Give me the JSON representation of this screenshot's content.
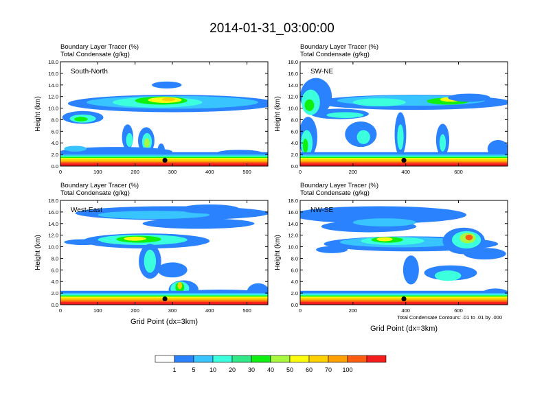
{
  "title": "2014-01-31_03:00:00",
  "panel_subtitle_line1": "Boundary Layer Tracer   (%)",
  "panel_subtitle_line2": "Total Condensate   (g/kg)",
  "x_axis_title": "Grid Point (dx=3km)",
  "y_axis_title": "Height (km)",
  "contour_note": "Total Condensate Contours: .01 to .01 by .000",
  "colorbar": {
    "colors": [
      "#ffffff",
      "#2a82ff",
      "#38c5ff",
      "#3cffdd",
      "#30e888",
      "#10f010",
      "#a8f840",
      "#fcfc10",
      "#ffd000",
      "#ffa000",
      "#ff5e10",
      "#f31d1d"
    ],
    "labels": [
      "1",
      "5",
      "10",
      "20",
      "30",
      "40",
      "50",
      "60",
      "70",
      "100"
    ]
  },
  "chart_data": [
    {
      "type": "heatmap",
      "panel_label": "South-North",
      "xlim": [
        0,
        556
      ],
      "ylim": [
        0,
        18
      ],
      "x_ticks": [
        "0",
        "100",
        "200",
        "300",
        "400",
        "500"
      ],
      "y_ticks": [
        "0.0",
        "2.0",
        "4.0",
        "6.0",
        "8.0",
        "10.0",
        "12.0",
        "14.0",
        "16.0",
        "18.0"
      ],
      "marker": {
        "x": 280,
        "y": 1.0
      }
    },
    {
      "type": "heatmap",
      "panel_label": "SW-NE",
      "xlim": [
        0,
        786
      ],
      "ylim": [
        0,
        18
      ],
      "x_ticks": [
        "0",
        "200",
        "400",
        "600"
      ],
      "y_ticks": [
        "0.0",
        "2.0",
        "4.0",
        "6.0",
        "8.0",
        "10.0",
        "12.0",
        "14.0",
        "16.0",
        "18.0"
      ],
      "marker": {
        "x": 393,
        "y": 1.0
      }
    },
    {
      "type": "heatmap",
      "panel_label": "West-East",
      "xlim": [
        0,
        556
      ],
      "ylim": [
        0,
        18
      ],
      "x_ticks": [
        "0",
        "100",
        "200",
        "300",
        "400",
        "500"
      ],
      "y_ticks": [
        "0.0",
        "2.0",
        "4.0",
        "6.0",
        "8.0",
        "10.0",
        "12.0",
        "14.0",
        "16.0",
        "18.0"
      ],
      "marker": {
        "x": 280,
        "y": 1.0
      }
    },
    {
      "type": "heatmap",
      "panel_label": "NW-SE",
      "xlim": [
        0,
        786
      ],
      "ylim": [
        0,
        18
      ],
      "x_ticks": [
        "0",
        "200",
        "400",
        "600"
      ],
      "y_ticks": [
        "0.0",
        "2.0",
        "4.0",
        "6.0",
        "8.0",
        "10.0",
        "12.0",
        "14.0",
        "16.0",
        "18.0"
      ],
      "marker": {
        "x": 393,
        "y": 1.0
      }
    }
  ]
}
